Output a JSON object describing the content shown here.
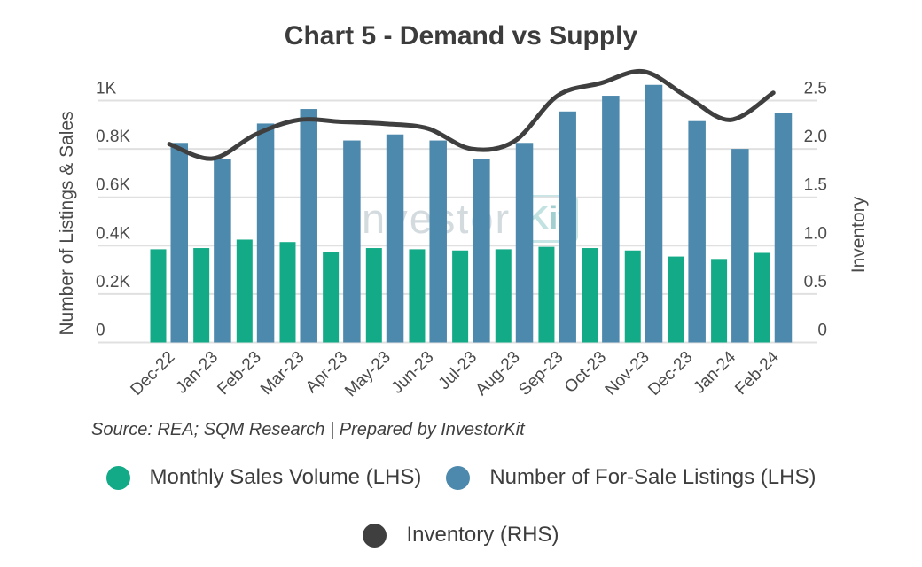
{
  "title": "Chart 5 - Demand vs Supply",
  "watermark": {
    "left": "Investor",
    "k": "K",
    "it": "it"
  },
  "source_note": "Source: REA; SQM Research | Prepared by InvestorKit",
  "legend": {
    "sales": "Monthly Sales Volume (LHS)",
    "listings": "Number of For-Sale Listings (LHS)",
    "inventory": "Inventory (RHS)"
  },
  "colors": {
    "sales": "#13AB87",
    "listings": "#4D89AC",
    "inventory": "#3F3F3F",
    "gridline": "#E0E0E0",
    "title_text": "#3C3C3C",
    "axis_text": "#4C4C4C"
  },
  "chart_data": {
    "type": "bar",
    "subtype": "combo-bar-line",
    "title": "Chart 5 - Demand vs Supply",
    "categories": [
      "Dec-22",
      "Jan-23",
      "Feb-23",
      "Mar-23",
      "Apr-23",
      "May-23",
      "Jun-23",
      "Jul-23",
      "Aug-23",
      "Sep-23",
      "Oct-23",
      "Nov-23",
      "Dec-23",
      "Jan-24",
      "Feb-24"
    ],
    "series": [
      {
        "name": "Monthly Sales Volume (LHS)",
        "type": "bar",
        "axis": "left",
        "color": "#13AB87",
        "values": [
          385,
          390,
          425,
          415,
          375,
          390,
          385,
          380,
          385,
          395,
          390,
          380,
          355,
          345,
          370
        ]
      },
      {
        "name": "Number of For-Sale Listings (LHS)",
        "type": "bar",
        "axis": "left",
        "color": "#4D89AC",
        "values": [
          825,
          760,
          905,
          965,
          835,
          860,
          835,
          760,
          825,
          955,
          1020,
          1065,
          915,
          800,
          950
        ]
      },
      {
        "name": "Inventory (RHS)",
        "type": "line",
        "axis": "right",
        "color": "#3F3F3F",
        "values": [
          2.05,
          1.9,
          2.15,
          2.3,
          2.28,
          2.26,
          2.21,
          2.0,
          2.08,
          2.55,
          2.68,
          2.8,
          2.54,
          2.3,
          2.58
        ]
      }
    ],
    "left_axis": {
      "label": "Number of Listings & Sales",
      "ticks": [
        "0",
        "0.2K",
        "0.4K",
        "0.6K",
        "0.8K",
        "1K"
      ],
      "min": 0,
      "max": 1000
    },
    "right_axis": {
      "label": "Inventory",
      "ticks": [
        "0",
        "0.5",
        "1.0",
        "1.5",
        "2.0",
        "2.5"
      ],
      "min": 0,
      "max": 2.5
    },
    "grid": true,
    "legend_position": "bottom"
  }
}
